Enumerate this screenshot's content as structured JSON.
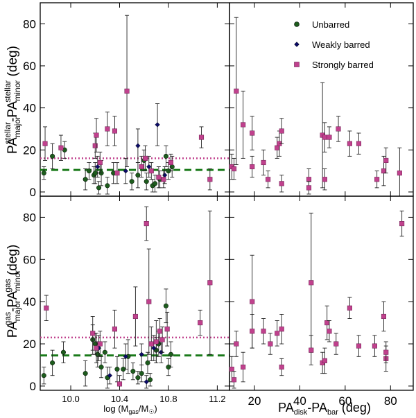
{
  "colors": {
    "unbarred": "#1d5c1d",
    "weak": "#0b0b66",
    "strong": "#c0418d",
    "pink_line": "#c0418d",
    "green_line": "#1a7a1a"
  },
  "chart_data": [
    {
      "id": "top-left",
      "type": "scatter",
      "ylabel_parts": [
        "PA",
        "major",
        "stellar",
        "-PA",
        "minor",
        "stellar",
        " (deg)"
      ],
      "xlim": [
        9.75,
        11.3
      ],
      "ylim": [
        -2,
        90
      ],
      "yticks": [
        0,
        20,
        40,
        60,
        80
      ],
      "xticks": [
        10.0,
        10.4,
        10.8,
        11.2
      ],
      "hlines": [
        {
          "y": 16,
          "style": "dotted",
          "color": "pink"
        },
        {
          "y": 10.5,
          "style": "dashed",
          "color": "green"
        }
      ],
      "series": [
        {
          "name": "Unbarred",
          "points": [
            [
              9.78,
              9,
              3,
              3
            ],
            [
              9.85,
              17,
              6,
              6
            ],
            [
              9.95,
              20,
              4,
              4
            ],
            [
              10.12,
              6,
              5,
              5
            ],
            [
              10.15,
              10,
              4,
              4
            ],
            [
              10.19,
              8,
              4,
              4
            ],
            [
              10.2,
              9,
              5,
              5
            ],
            [
              10.23,
              2,
              3,
              3
            ],
            [
              10.25,
              9,
              6,
              6
            ],
            [
              10.3,
              3,
              4,
              4
            ],
            [
              10.35,
              9,
              5,
              5
            ],
            [
              10.5,
              5,
              4,
              4
            ],
            [
              10.55,
              8,
              6,
              6
            ],
            [
              10.6,
              15,
              5,
              5
            ],
            [
              10.62,
              5,
              4,
              4
            ],
            [
              10.67,
              3,
              3,
              3
            ],
            [
              10.69,
              4,
              4,
              4
            ],
            [
              10.73,
              6,
              4,
              4
            ],
            [
              10.78,
              17,
              5,
              5
            ],
            [
              10.8,
              10,
              4,
              4
            ],
            [
              10.83,
              12,
              5,
              5
            ]
          ]
        },
        {
          "name": "Weakly barred",
          "points": [
            [
              10.22,
              12,
              5,
              5
            ],
            [
              10.45,
              10,
              6,
              6
            ],
            [
              10.55,
              22,
              8,
              8
            ],
            [
              10.64,
              12,
              5,
              5
            ],
            [
              10.71,
              32,
              10,
              10
            ],
            [
              10.77,
              8,
              4,
              4
            ]
          ]
        },
        {
          "name": "Strongly barred",
          "points": [
            [
              9.79,
              23,
              8,
              8
            ],
            [
              9.92,
              21,
              6,
              6
            ],
            [
              10.2,
              22,
              6,
              6
            ],
            [
              10.21,
              27,
              8,
              8
            ],
            [
              10.24,
              14,
              5,
              5
            ],
            [
              10.3,
              30,
              8,
              8
            ],
            [
              10.36,
              29,
              7,
              7
            ],
            [
              10.38,
              9,
              5,
              5
            ],
            [
              10.46,
              48,
              36,
              36
            ],
            [
              10.58,
              12,
              5,
              5
            ],
            [
              10.61,
              16,
              6,
              6
            ],
            [
              10.66,
              10,
              4,
              4
            ],
            [
              10.72,
              7,
              5,
              5
            ],
            [
              10.76,
              6,
              4,
              4
            ],
            [
              10.82,
              14,
              4,
              4
            ],
            [
              11.07,
              26,
              5,
              5
            ],
            [
              11.14,
              6,
              5,
              5
            ]
          ]
        }
      ]
    },
    {
      "id": "top-right",
      "type": "scatter",
      "xlim": [
        9,
        90
      ],
      "ylim": [
        -2,
        90
      ],
      "yticks": [
        0,
        20,
        40,
        60,
        80
      ],
      "xticks": [
        20,
        40,
        60,
        80
      ],
      "legend": [
        "Unbarred",
        "Weakly barred",
        "Strongly barred"
      ],
      "series": [
        {
          "name": "Strongly barred",
          "points": [
            [
              10,
              12,
              6,
              6
            ],
            [
              11,
              11,
              5,
              5
            ],
            [
              12,
              48,
              35,
              35
            ],
            [
              15,
              32,
              16,
              16
            ],
            [
              19,
              28,
              8,
              8
            ],
            [
              19,
              12,
              5,
              5
            ],
            [
              24,
              14,
              6,
              6
            ],
            [
              26,
              6,
              4,
              4
            ],
            [
              30,
              21,
              5,
              5
            ],
            [
              31,
              23,
              6,
              6
            ],
            [
              32,
              29,
              6,
              6
            ],
            [
              32,
              4,
              4,
              4
            ],
            [
              44,
              6,
              5,
              5
            ],
            [
              44,
              2,
              3,
              3
            ],
            [
              50,
              27,
              25,
              25
            ],
            [
              51,
              26,
              7,
              7
            ],
            [
              51,
              6,
              5,
              5
            ],
            [
              53,
              26,
              5,
              5
            ],
            [
              57,
              30,
              6,
              6
            ],
            [
              62,
              23,
              6,
              6
            ],
            [
              66,
              23,
              5,
              5
            ],
            [
              74,
              6,
              4,
              4
            ],
            [
              77,
              10,
              7,
              7
            ],
            [
              78,
              15,
              6,
              6
            ],
            [
              84,
              9,
              12,
              12
            ]
          ]
        }
      ]
    },
    {
      "id": "bottom-left",
      "type": "scatter",
      "ylabel_parts": [
        "PA",
        "major",
        "gas",
        "-PA",
        "minor",
        "gas",
        " (deg)"
      ],
      "xlabel": "log (M",
      "xlabel_sub": "gas",
      "xlabel_end": "/M",
      "xlabel_sun": "☉",
      "xlabel_close": ")",
      "xlim": [
        9.75,
        11.3
      ],
      "ylim": [
        -2,
        90
      ],
      "yticks": [
        0,
        20,
        40,
        60,
        80
      ],
      "xticks": [
        10.0,
        10.4,
        10.8,
        11.2
      ],
      "xticklabels": [
        "10.0",
        "10.4",
        "10.8",
        "11.2"
      ],
      "hlines": [
        {
          "y": 23,
          "style": "dotted",
          "color": "pink"
        },
        {
          "y": 14.5,
          "style": "dashed",
          "color": "green"
        }
      ],
      "series": [
        {
          "name": "Unbarred",
          "points": [
            [
              9.78,
              5,
              4,
              4
            ],
            [
              9.85,
              11,
              6,
              6
            ],
            [
              9.94,
              16,
              5,
              5
            ],
            [
              10.12,
              6,
              6,
              6
            ],
            [
              10.18,
              22,
              7,
              7
            ],
            [
              10.2,
              20,
              5,
              5
            ],
            [
              10.22,
              15,
              6,
              6
            ],
            [
              10.25,
              9,
              5,
              5
            ],
            [
              10.28,
              16,
              5,
              5
            ],
            [
              10.3,
              4,
              5,
              5
            ],
            [
              10.38,
              8,
              6,
              6
            ],
            [
              10.43,
              8,
              5,
              5
            ],
            [
              10.47,
              14,
              8,
              8
            ],
            [
              10.51,
              7,
              4,
              4
            ],
            [
              10.55,
              4,
              3,
              3
            ],
            [
              10.58,
              6,
              4,
              4
            ],
            [
              10.63,
              11,
              5,
              5
            ],
            [
              10.65,
              3,
              3,
              3
            ],
            [
              10.7,
              17,
              6,
              6
            ],
            [
              10.72,
              20,
              6,
              6
            ],
            [
              10.78,
              38,
              8,
              8
            ],
            [
              10.8,
              9,
              4,
              4
            ],
            [
              10.82,
              15,
              6,
              6
            ]
          ]
        },
        {
          "name": "Weakly barred",
          "points": [
            [
              10.23,
              18,
              6,
              6
            ],
            [
              10.32,
              5,
              4,
              4
            ],
            [
              10.45,
              14,
              6,
              6
            ],
            [
              10.58,
              15,
              5,
              5
            ],
            [
              10.62,
              2,
              3,
              3
            ],
            [
              10.68,
              18,
              6,
              6
            ],
            [
              10.74,
              16,
              5,
              5
            ]
          ]
        },
        {
          "name": "Strongly barred",
          "points": [
            [
              9.8,
              37,
              6,
              6
            ],
            [
              10.18,
              25,
              8,
              8
            ],
            [
              10.21,
              18,
              7,
              7
            ],
            [
              10.24,
              20,
              6,
              6
            ],
            [
              10.36,
              27,
              9,
              9
            ],
            [
              10.4,
              1,
              4,
              4
            ],
            [
              10.53,
              33,
              14,
              14
            ],
            [
              10.62,
              77,
              8,
              8
            ],
            [
              10.64,
              40,
              25,
              25
            ],
            [
              10.66,
              20,
              8,
              8
            ],
            [
              10.7,
              21,
              10,
              10
            ],
            [
              10.73,
              26,
              6,
              6
            ],
            [
              10.75,
              22,
              6,
              6
            ],
            [
              10.79,
              27,
              8,
              8
            ],
            [
              11.06,
              30,
              6,
              6
            ],
            [
              11.14,
              49,
              34,
              34
            ]
          ]
        }
      ]
    },
    {
      "id": "bottom-right",
      "type": "scatter",
      "xlabel": "PA",
      "xlabel_sub1": "disk",
      "xlabel_mid": "-PA",
      "xlabel_sub2": "bar",
      "xlabel_end": " (deg)",
      "xlim": [
        9,
        90
      ],
      "ylim": [
        -2,
        90
      ],
      "yticks": [
        0,
        20,
        40,
        60,
        80
      ],
      "xticks": [
        20,
        40,
        60,
        80
      ],
      "xticklabels": [
        "20",
        "40",
        "60",
        "80"
      ],
      "series": [
        {
          "name": "Strongly barred",
          "points": [
            [
              10,
              8,
              6,
              6
            ],
            [
              11,
              3,
              4,
              4
            ],
            [
              12,
              20,
              6,
              6
            ],
            [
              15,
              9,
              7,
              7
            ],
            [
              19,
              40,
              22,
              22
            ],
            [
              19,
              26,
              8,
              8
            ],
            [
              24,
              26,
              6,
              6
            ],
            [
              27,
              20,
              5,
              5
            ],
            [
              30,
              25,
              6,
              6
            ],
            [
              32,
              27,
              7,
              7
            ],
            [
              32,
              9,
              4,
              4
            ],
            [
              45,
              49,
              33,
              33
            ],
            [
              45,
              17,
              7,
              7
            ],
            [
              50,
              11,
              5,
              5
            ],
            [
              51,
              12,
              6,
              6
            ],
            [
              52,
              30,
              8,
              8
            ],
            [
              53,
              26,
              5,
              5
            ],
            [
              56,
              20,
              5,
              5
            ],
            [
              62,
              37,
              5,
              5
            ],
            [
              66,
              19,
              5,
              5
            ],
            [
              73,
              19,
              5,
              5
            ],
            [
              77,
              33,
              7,
              7
            ],
            [
              78,
              13,
              6,
              6
            ],
            [
              78,
              16,
              5,
              5
            ],
            [
              85,
              77,
              6,
              6
            ]
          ]
        }
      ]
    }
  ]
}
